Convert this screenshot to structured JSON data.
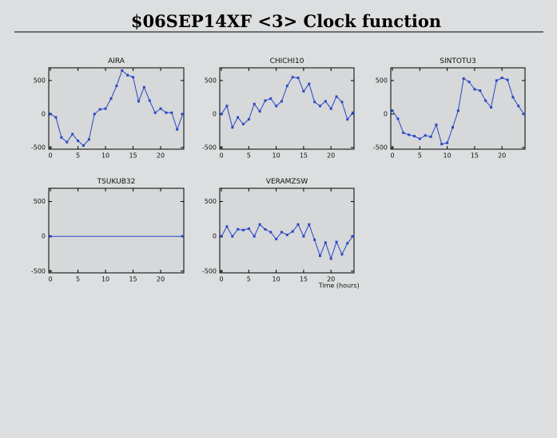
{
  "title": "$06SEP14XF <3>  Clock function",
  "chart_data": [
    {
      "type": "line",
      "title": "AIRA",
      "color": "#2a46c8",
      "x": [
        0,
        1,
        2,
        3,
        4,
        5,
        6,
        7,
        8,
        9,
        10,
        11,
        12,
        13,
        14,
        15,
        16,
        17,
        18,
        19,
        20,
        21,
        22,
        23,
        24
      ],
      "values": [
        0,
        -50,
        -350,
        -420,
        -300,
        -400,
        -470,
        -380,
        0,
        70,
        80,
        230,
        420,
        650,
        580,
        550,
        190,
        400,
        200,
        20,
        80,
        20,
        20,
        -230,
        0
      ],
      "xlim": [
        -0.3,
        24.2
      ],
      "ylim": [
        -525,
        690
      ],
      "xticks": [
        0,
        5,
        10,
        15,
        20
      ],
      "yticks": [
        -500,
        0,
        500
      ]
    },
    {
      "type": "line",
      "title": "CHICHI10",
      "color": "#2a46c8",
      "x": [
        0,
        1,
        2,
        3,
        4,
        5,
        6,
        7,
        8,
        9,
        10,
        11,
        12,
        13,
        14,
        15,
        16,
        17,
        18,
        19,
        20,
        21,
        22,
        23,
        24
      ],
      "values": [
        0,
        120,
        -200,
        -50,
        -150,
        -80,
        150,
        40,
        200,
        230,
        120,
        190,
        420,
        550,
        540,
        340,
        450,
        180,
        120,
        190,
        80,
        260,
        180,
        -80,
        20
      ],
      "xlim": [
        -0.3,
        24.2
      ],
      "ylim": [
        -525,
        690
      ],
      "xticks": [
        0,
        5,
        10,
        15,
        20
      ],
      "yticks": [
        -500,
        0,
        500
      ]
    },
    {
      "type": "line",
      "title": "SINTOTU3",
      "color": "#2a46c8",
      "x": [
        0,
        1,
        2,
        3,
        4,
        5,
        6,
        7,
        8,
        9,
        10,
        11,
        12,
        13,
        14,
        15,
        16,
        17,
        18,
        19,
        20,
        21,
        22,
        23,
        24
      ],
      "values": [
        50,
        -70,
        -280,
        -310,
        -330,
        -370,
        -320,
        -340,
        -160,
        -450,
        -430,
        -200,
        50,
        530,
        480,
        370,
        350,
        200,
        100,
        500,
        540,
        510,
        250,
        120,
        0
      ],
      "xlim": [
        -0.3,
        24.2
      ],
      "ylim": [
        -525,
        690
      ],
      "xticks": [
        0,
        5,
        10,
        15,
        20
      ],
      "yticks": [
        -500,
        0,
        500
      ]
    },
    {
      "type": "line",
      "title": "TSUKUB32",
      "color": "#2a46c8",
      "x": [
        0,
        24
      ],
      "values": [
        0,
        0
      ],
      "xlim": [
        -0.3,
        24.2
      ],
      "ylim": [
        -525,
        690
      ],
      "xticks": [
        0,
        5,
        10,
        15,
        20
      ],
      "yticks": [
        -500,
        0,
        500
      ]
    },
    {
      "type": "line",
      "title": "VERAMZSW",
      "color": "#2a46c8",
      "xlabel": "Time (hours)",
      "x": [
        0,
        1,
        2,
        3,
        4,
        5,
        6,
        7,
        8,
        9,
        10,
        11,
        12,
        13,
        14,
        15,
        16,
        17,
        18,
        19,
        20,
        21,
        22,
        23,
        24
      ],
      "values": [
        0,
        140,
        0,
        100,
        90,
        110,
        0,
        170,
        100,
        60,
        -40,
        60,
        20,
        70,
        170,
        0,
        170,
        -50,
        -280,
        -90,
        -320,
        -80,
        -260,
        -100,
        0
      ],
      "xlim": [
        -0.3,
        24.2
      ],
      "ylim": [
        -525,
        690
      ],
      "xticks": [
        0,
        5,
        10,
        15,
        20
      ],
      "yticks": [
        -500,
        0,
        500
      ]
    }
  ]
}
